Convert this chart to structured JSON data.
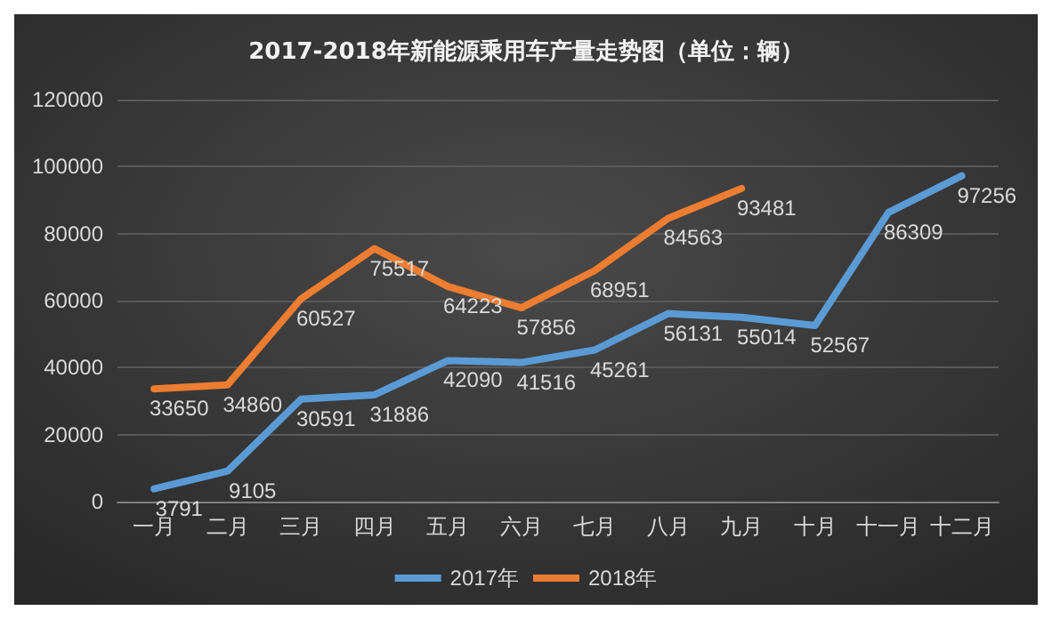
{
  "chart_data": {
    "type": "line",
    "title": "2017-2018年新能源乘用车产量走势图（单位：辆）",
    "categories": [
      "一月",
      "二月",
      "三月",
      "四月",
      "五月",
      "六月",
      "七月",
      "八月",
      "九月",
      "十月",
      "十一月",
      "十二月"
    ],
    "series": [
      {
        "name": "2017年",
        "color": "#5b9bd5",
        "values": [
          3791,
          9105,
          30591,
          31886,
          42090,
          41516,
          45261,
          56131,
          55014,
          52567,
          86309,
          97256
        ]
      },
      {
        "name": "2018年",
        "color": "#ed7d31",
        "values": [
          33650,
          34860,
          60527,
          75517,
          64223,
          57856,
          68951,
          84563,
          93481,
          null,
          null,
          null
        ]
      }
    ],
    "ylim": [
      0,
      120000
    ],
    "yticks": [
      0,
      20000,
      40000,
      60000,
      80000,
      100000,
      120000
    ],
    "grid": "y",
    "legend": "bottom",
    "marker": "none",
    "line_style": "solid",
    "data_labels": true
  }
}
